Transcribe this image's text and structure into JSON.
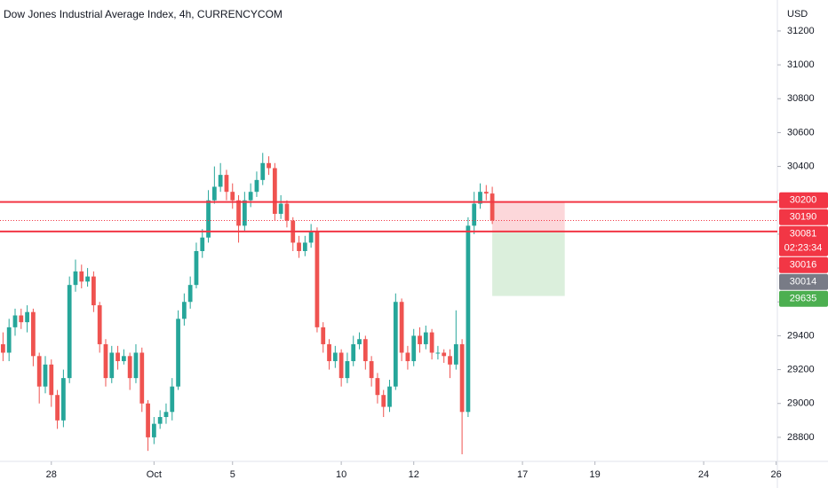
{
  "chart_data": {
    "type": "candlestick",
    "title": "Dow Jones Industrial Average Index, 4h, CURRENCYCOM",
    "currency": "USD",
    "up_color": "#26a69a",
    "down_color": "#ef5350",
    "x": [
      0,
      1,
      2,
      3,
      4,
      5,
      6,
      7,
      8,
      9,
      10,
      11,
      12,
      13,
      14,
      15,
      16,
      17,
      18,
      19,
      20,
      21,
      22,
      23,
      24,
      25,
      26,
      27,
      28,
      29,
      30,
      31,
      32,
      33,
      34,
      35,
      36,
      37,
      38,
      39,
      40,
      41,
      42,
      43,
      44,
      45,
      46,
      47,
      48,
      49,
      50,
      51,
      52,
      53,
      54,
      55,
      56,
      57,
      58,
      59,
      60,
      61,
      62,
      63,
      64,
      65,
      66,
      67,
      68,
      69,
      70,
      71,
      72,
      73,
      74,
      75,
      76,
      77,
      78,
      79,
      80,
      81
    ],
    "open": [
      29350,
      29300,
      29450,
      29520,
      29480,
      29540,
      29280,
      29100,
      29230,
      29050,
      28900,
      29150,
      29700,
      29780,
      29720,
      29750,
      29580,
      29350,
      29150,
      29300,
      29250,
      29280,
      29150,
      29300,
      29000,
      28800,
      28880,
      28920,
      28950,
      29100,
      29500,
      29600,
      29700,
      29900,
      29980,
      30200,
      30280,
      30350,
      30250,
      30200,
      30050,
      30200,
      30250,
      30320,
      30420,
      30390,
      30120,
      30180,
      30080,
      29950,
      29900,
      29950,
      30020,
      29450,
      29350,
      29250,
      29300,
      29150,
      29250,
      29350,
      29380,
      29250,
      29150,
      29050,
      28980,
      29100,
      29600,
      29300,
      29250,
      29400,
      29350,
      29420,
      29300,
      29300,
      29280,
      29230,
      29350,
      28950,
      30050,
      30180,
      30250,
      30240
    ],
    "high": [
      29420,
      29500,
      29560,
      29560,
      29580,
      29560,
      29300,
      29280,
      29260,
      29080,
      29200,
      29750,
      29850,
      29820,
      29800,
      29780,
      29600,
      29380,
      29340,
      29340,
      29320,
      29300,
      29350,
      29330,
      29020,
      28920,
      28960,
      29000,
      29150,
      29550,
      29650,
      29750,
      29950,
      30030,
      30260,
      30400,
      30420,
      30380,
      30300,
      30230,
      30250,
      30300,
      30370,
      30480,
      30460,
      30420,
      30230,
      30200,
      30100,
      29990,
      29990,
      30060,
      30040,
      29480,
      29380,
      29340,
      29320,
      29300,
      29400,
      29420,
      29400,
      29280,
      29180,
      29080,
      29140,
      29650,
      29620,
      29340,
      29440,
      29450,
      29460,
      29440,
      29340,
      29320,
      29320,
      29550,
      29380,
      30100,
      30250,
      30300,
      30290,
      30280
    ],
    "low": [
      29250,
      29250,
      29400,
      29440,
      29420,
      29220,
      29000,
      29060,
      28980,
      28850,
      28860,
      29120,
      29660,
      29680,
      29690,
      29540,
      29300,
      29100,
      29120,
      29200,
      29230,
      29080,
      29120,
      28950,
      28720,
      28760,
      28850,
      28880,
      28900,
      29080,
      29460,
      29560,
      29680,
      29860,
      29950,
      30180,
      30250,
      30200,
      30150,
      29950,
      30020,
      30160,
      30220,
      30290,
      30350,
      30080,
      30090,
      30040,
      29900,
      29860,
      29870,
      29920,
      29420,
      29300,
      29200,
      29210,
      29100,
      29120,
      29220,
      29320,
      29200,
      29100,
      29000,
      28920,
      28950,
      29080,
      29250,
      29200,
      29220,
      29300,
      29320,
      29260,
      29260,
      29240,
      29150,
      29200,
      28700,
      28920,
      30000,
      30150,
      30200,
      30060
    ],
    "close": [
      29300,
      29450,
      29520,
      29480,
      29540,
      29280,
      29100,
      29230,
      29050,
      28900,
      29150,
      29700,
      29780,
      29720,
      29750,
      29580,
      29350,
      29150,
      29300,
      29250,
      29280,
      29150,
      29300,
      29000,
      28800,
      28880,
      28920,
      28950,
      29100,
      29500,
      29600,
      29700,
      29900,
      29980,
      30200,
      30280,
      30350,
      30250,
      30200,
      30050,
      30200,
      30250,
      30320,
      30420,
      30390,
      30120,
      30180,
      30080,
      29950,
      29900,
      29950,
      30020,
      29450,
      29350,
      29250,
      29300,
      29150,
      29250,
      29350,
      29380,
      29250,
      29150,
      29050,
      28980,
      29100,
      29600,
      29300,
      29250,
      29400,
      29350,
      29420,
      29300,
      29300,
      29280,
      29230,
      29350,
      28950,
      30050,
      30180,
      30250,
      30240,
      30081
    ],
    "xlim": [
      -0.5,
      128.2
    ],
    "ylim": [
      28658,
      31383
    ],
    "xticks": [
      {
        "value": 8,
        "label": "28"
      },
      {
        "value": 25,
        "label": "Oct"
      },
      {
        "value": 38,
        "label": "5"
      },
      {
        "value": 56,
        "label": "10"
      },
      {
        "value": 68,
        "label": "12"
      },
      {
        "value": 86,
        "label": "17"
      },
      {
        "value": 98,
        "label": "19"
      },
      {
        "value": 116,
        "label": "24"
      },
      {
        "value": 128,
        "label": "26"
      }
    ],
    "yticks": [
      28800,
      29000,
      29200,
      29400,
      29600,
      29800,
      30000,
      30200,
      30400,
      30600,
      30800,
      31000,
      31200
    ],
    "grid": false,
    "hlines": [
      {
        "value": 30190,
        "color": "#f23645"
      },
      {
        "value": 30016,
        "color": "#f23645"
      }
    ],
    "position": {
      "entry": 30016,
      "stop": 30190,
      "target": 29635,
      "x": [
        81,
        93
      ]
    },
    "price_tags": [
      {
        "value": 30200,
        "color": "#f23645"
      },
      {
        "value": 30190,
        "color": "#f23645"
      },
      {
        "value": 30081,
        "color": "#f23645",
        "countdown": "02:23:34"
      },
      {
        "value": 30016,
        "color": "#f23645"
      },
      {
        "value": 30014,
        "color": "#787b86"
      },
      {
        "value": 29635,
        "color": "#4caf50"
      }
    ]
  }
}
